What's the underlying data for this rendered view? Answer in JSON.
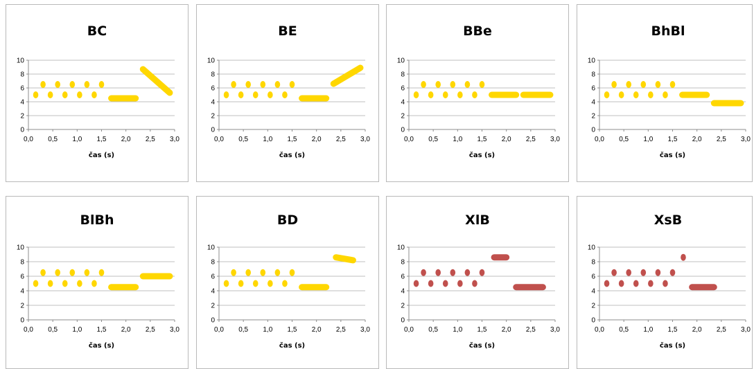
{
  "style": {
    "grid_color": "#bfbfbf",
    "axis_color": "#8c8c8c"
  },
  "chart_data": [
    {
      "type": "scatter",
      "title": "BC",
      "xlabel": "čas (s)",
      "ylabel": "",
      "xlim": [
        0,
        3
      ],
      "ylim": [
        0,
        10
      ],
      "grid": true,
      "color": "#ffd700",
      "xticks": [
        "0,0",
        "0,5",
        "1,0",
        "1,5",
        "2,0",
        "2,5",
        "3,0"
      ],
      "yticks": [
        "0",
        "2",
        "4",
        "6",
        "8",
        "10"
      ],
      "points": [
        [
          0.15,
          5
        ],
        [
          0.3,
          6.5
        ],
        [
          0.45,
          5
        ],
        [
          0.6,
          6.5
        ],
        [
          0.75,
          5
        ],
        [
          0.9,
          6.5
        ],
        [
          1.05,
          5
        ],
        [
          1.2,
          6.5
        ],
        [
          1.35,
          5
        ],
        [
          1.5,
          6.5
        ]
      ],
      "segments": [
        [
          1.7,
          4.5,
          2.2,
          4.5
        ],
        [
          2.35,
          8.7,
          2.9,
          5.3
        ]
      ]
    },
    {
      "type": "scatter",
      "title": "BE",
      "xlabel": "čas (s)",
      "ylabel": "",
      "xlim": [
        0,
        3
      ],
      "ylim": [
        0,
        10
      ],
      "grid": true,
      "color": "#ffd700",
      "xticks": [
        "0,0",
        "0,5",
        "1,0",
        "1,5",
        "2,0",
        "2,5",
        "3,0"
      ],
      "yticks": [
        "0",
        "2",
        "4",
        "6",
        "8",
        "10"
      ],
      "points": [
        [
          0.15,
          5
        ],
        [
          0.3,
          6.5
        ],
        [
          0.45,
          5
        ],
        [
          0.6,
          6.5
        ],
        [
          0.75,
          5
        ],
        [
          0.9,
          6.5
        ],
        [
          1.05,
          5
        ],
        [
          1.2,
          6.5
        ],
        [
          1.35,
          5
        ],
        [
          1.5,
          6.5
        ]
      ],
      "segments": [
        [
          1.7,
          4.5,
          2.2,
          4.5
        ],
        [
          2.35,
          6.6,
          2.9,
          8.9
        ]
      ]
    },
    {
      "type": "scatter",
      "title": "BBe",
      "xlabel": "čas (s)",
      "ylabel": "",
      "xlim": [
        0,
        3
      ],
      "ylim": [
        0,
        10
      ],
      "grid": true,
      "color": "#ffd700",
      "xticks": [
        "0,0",
        "0,5",
        "1,0",
        "1,5",
        "2,0",
        "2,5",
        "3,0"
      ],
      "yticks": [
        "0",
        "2",
        "4",
        "6",
        "8",
        "10"
      ],
      "points": [
        [
          0.15,
          5
        ],
        [
          0.3,
          6.5
        ],
        [
          0.45,
          5
        ],
        [
          0.6,
          6.5
        ],
        [
          0.75,
          5
        ],
        [
          0.9,
          6.5
        ],
        [
          1.05,
          5
        ],
        [
          1.2,
          6.5
        ],
        [
          1.35,
          5
        ],
        [
          1.5,
          6.5
        ]
      ],
      "segments": [
        [
          1.7,
          5,
          2.2,
          5
        ],
        [
          2.35,
          5,
          2.9,
          5
        ]
      ]
    },
    {
      "type": "scatter",
      "title": "BhBl",
      "xlabel": "čas (s)",
      "ylabel": "",
      "xlim": [
        0,
        3
      ],
      "ylim": [
        0,
        10
      ],
      "grid": true,
      "color": "#ffd700",
      "xticks": [
        "0,0",
        "0,5",
        "1,0",
        "1,5",
        "2,0",
        "2,5",
        "3,0"
      ],
      "yticks": [
        "0",
        "2",
        "4",
        "6",
        "8",
        "10"
      ],
      "points": [
        [
          0.15,
          5
        ],
        [
          0.3,
          6.5
        ],
        [
          0.45,
          5
        ],
        [
          0.6,
          6.5
        ],
        [
          0.75,
          5
        ],
        [
          0.9,
          6.5
        ],
        [
          1.05,
          5
        ],
        [
          1.2,
          6.5
        ],
        [
          1.35,
          5
        ],
        [
          1.5,
          6.5
        ]
      ],
      "segments": [
        [
          1.7,
          5,
          2.2,
          5
        ],
        [
          2.35,
          3.8,
          2.9,
          3.8
        ]
      ]
    },
    {
      "type": "scatter",
      "title": "BlBh",
      "xlabel": "čas (s)",
      "ylabel": "",
      "xlim": [
        0,
        3
      ],
      "ylim": [
        0,
        10
      ],
      "grid": true,
      "color": "#ffd700",
      "xticks": [
        "0,0",
        "0,5",
        "1,0",
        "1,5",
        "2,0",
        "2,5",
        "3,0"
      ],
      "yticks": [
        "0",
        "2",
        "4",
        "6",
        "8",
        "10"
      ],
      "points": [
        [
          0.15,
          5
        ],
        [
          0.3,
          6.5
        ],
        [
          0.45,
          5
        ],
        [
          0.6,
          6.5
        ],
        [
          0.75,
          5
        ],
        [
          0.9,
          6.5
        ],
        [
          1.05,
          5
        ],
        [
          1.2,
          6.5
        ],
        [
          1.35,
          5
        ],
        [
          1.5,
          6.5
        ]
      ],
      "segments": [
        [
          1.7,
          4.5,
          2.2,
          4.5
        ],
        [
          2.35,
          6,
          2.9,
          6
        ]
      ]
    },
    {
      "type": "scatter",
      "title": "BD",
      "xlabel": "čas (s)",
      "ylabel": "",
      "xlim": [
        0,
        3
      ],
      "ylim": [
        0,
        10
      ],
      "grid": true,
      "color": "#ffd700",
      "xticks": [
        "0,0",
        "0,5",
        "1,0",
        "1,5",
        "2,0",
        "2,5",
        "3,0"
      ],
      "yticks": [
        "0",
        "2",
        "4",
        "6",
        "8",
        "10"
      ],
      "points": [
        [
          0.15,
          5
        ],
        [
          0.3,
          6.5
        ],
        [
          0.45,
          5
        ],
        [
          0.6,
          6.5
        ],
        [
          0.75,
          5
        ],
        [
          0.9,
          6.5
        ],
        [
          1.05,
          5
        ],
        [
          1.2,
          6.5
        ],
        [
          1.35,
          5
        ],
        [
          1.5,
          6.5
        ]
      ],
      "segments": [
        [
          1.7,
          4.5,
          2.2,
          4.5
        ],
        [
          2.4,
          8.6,
          2.75,
          8.2
        ]
      ]
    },
    {
      "type": "scatter",
      "title": "XlB",
      "xlabel": "čas (s)",
      "ylabel": "",
      "xlim": [
        0,
        3
      ],
      "ylim": [
        0,
        10
      ],
      "grid": true,
      "color": "#c0504d",
      "xticks": [
        "0,0",
        "0,5",
        "1,0",
        "1,5",
        "2,0",
        "2,5",
        "3,0"
      ],
      "yticks": [
        "0",
        "2",
        "4",
        "6",
        "8",
        "10"
      ],
      "points": [
        [
          0.15,
          5
        ],
        [
          0.3,
          6.5
        ],
        [
          0.45,
          5
        ],
        [
          0.6,
          6.5
        ],
        [
          0.75,
          5
        ],
        [
          0.9,
          6.5
        ],
        [
          1.05,
          5
        ],
        [
          1.2,
          6.5
        ],
        [
          1.35,
          5
        ],
        [
          1.5,
          6.5
        ]
      ],
      "segments": [
        [
          1.75,
          8.6,
          2.0,
          8.6
        ],
        [
          2.2,
          4.5,
          2.75,
          4.5
        ]
      ]
    },
    {
      "type": "scatter",
      "title": "XsB",
      "xlabel": "čas (s)",
      "ylabel": "",
      "xlim": [
        0,
        3
      ],
      "ylim": [
        0,
        10
      ],
      "grid": true,
      "color": "#c0504d",
      "xticks": [
        "0,0",
        "0,5",
        "1,0",
        "1,5",
        "2,0",
        "2,5",
        "3,0"
      ],
      "yticks": [
        "0",
        "2",
        "4",
        "6",
        "8",
        "10"
      ],
      "points": [
        [
          0.15,
          5
        ],
        [
          0.3,
          6.5
        ],
        [
          0.45,
          5
        ],
        [
          0.6,
          6.5
        ],
        [
          0.75,
          5
        ],
        [
          0.9,
          6.5
        ],
        [
          1.05,
          5
        ],
        [
          1.2,
          6.5
        ],
        [
          1.35,
          5
        ],
        [
          1.5,
          6.5
        ],
        [
          1.72,
          8.6
        ]
      ],
      "segments": [
        [
          1.9,
          4.5,
          2.35,
          4.5
        ]
      ]
    }
  ]
}
